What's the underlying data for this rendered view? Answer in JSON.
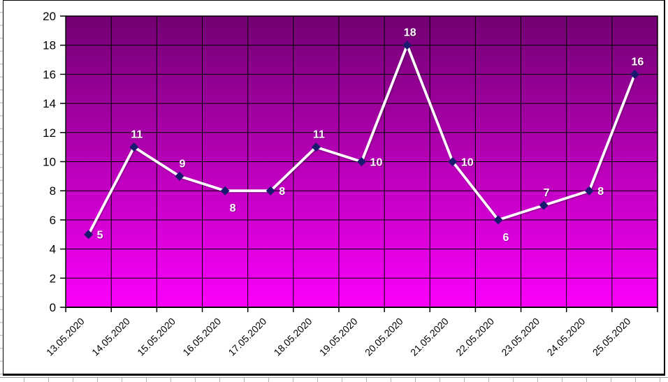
{
  "chart_data": {
    "type": "line",
    "title": "",
    "xlabel": "",
    "ylabel": "",
    "categories": [
      "13.05.2020",
      "14.05.2020",
      "15.05.2020",
      "16.05.2020",
      "17.05.2020",
      "18.05.2020",
      "19.05.2020",
      "20.05.2020",
      "21.05.2020",
      "22.05.2020",
      "23.05.2020",
      "24.05.2020",
      "25.05.2020"
    ],
    "series": [
      {
        "name": "",
        "values": [
          5,
          11,
          9,
          8,
          8,
          11,
          10,
          18,
          10,
          6,
          7,
          8,
          16
        ]
      }
    ],
    "data_labels": [
      "5",
      "11",
      "9",
      "8",
      "8",
      "11",
      "10",
      "18",
      "10",
      "6",
      "7",
      "8",
      "16"
    ],
    "label_positions": [
      "right",
      "above",
      "above",
      "below",
      "right",
      "above",
      "right",
      "above",
      "right",
      "below",
      "above",
      "right",
      "above"
    ],
    "ylim": [
      0,
      20
    ],
    "ytick_step": 2,
    "yticks": [
      "0",
      "2",
      "4",
      "6",
      "8",
      "10",
      "12",
      "14",
      "16",
      "18",
      "20"
    ],
    "grid": true,
    "legend": false,
    "x_label_rotation_deg": -45,
    "colors": {
      "plot_gradient_top": "#720072",
      "plot_gradient_bottom": "#fb00fb",
      "line": "#ffffff",
      "marker": "#191970",
      "data_label": "#ffffff",
      "grid": "#000000",
      "axis": "#000000",
      "axis_text": "#000000",
      "chart_background": "#ffffff",
      "sheet_gridline": "#c8c8c8"
    }
  }
}
